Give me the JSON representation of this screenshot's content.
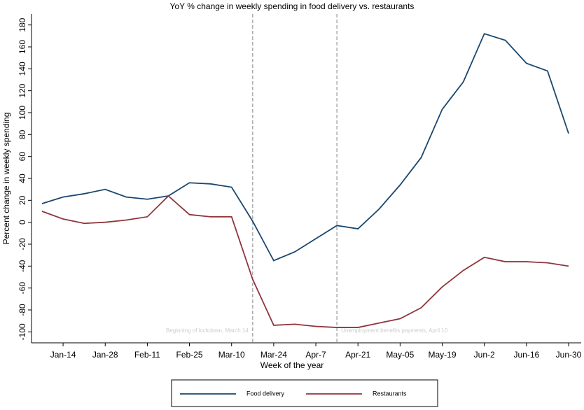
{
  "chart_data": {
    "type": "line",
    "title": "YoY % change in weekly spending in food delivery vs. restaurants",
    "x_label": "Week of the year",
    "y_label": "Percent change in weekly spending",
    "categories": [
      null,
      "Jan-14",
      null,
      "Jan-28",
      null,
      "Feb-11",
      null,
      "Feb-25",
      null,
      "Mar-10",
      null,
      "Mar-24",
      null,
      "Apr-7",
      null,
      "Apr-21",
      null,
      "May-05",
      null,
      "May-19",
      null,
      "Jun-2",
      null,
      "Jun-16",
      null,
      "Jun-30"
    ],
    "series": [
      {
        "name": "Food delivery",
        "color": "#1a476f",
        "values": [
          17,
          23,
          26,
          30,
          23,
          21,
          24,
          36,
          35,
          32,
          1,
          -35,
          -27,
          -15,
          -3,
          -6,
          12,
          34,
          59,
          103,
          128,
          172,
          166,
          145,
          138,
          81
        ]
      },
      {
        "name": "Restaurants",
        "color": "#90353b",
        "values": [
          10,
          3,
          -1,
          0,
          2,
          5,
          24,
          7,
          5,
          5,
          -52,
          -94,
          -93,
          -95,
          -96,
          -96,
          -92,
          -88,
          -78,
          -59,
          -44,
          -32,
          -36,
          -36,
          -37,
          -40
        ]
      }
    ],
    "ylim": [
      -110,
      190
    ],
    "yticks": [
      -100,
      -80,
      -60,
      -40,
      -20,
      0,
      20,
      40,
      60,
      80,
      100,
      120,
      140,
      160,
      180
    ],
    "annotations": [
      {
        "text": "Beginning of lockdown, March 14",
        "at": 10
      },
      {
        "text": "Unemployment benefits payments, April 10",
        "at": 14
      }
    ],
    "legend": "bottom"
  }
}
